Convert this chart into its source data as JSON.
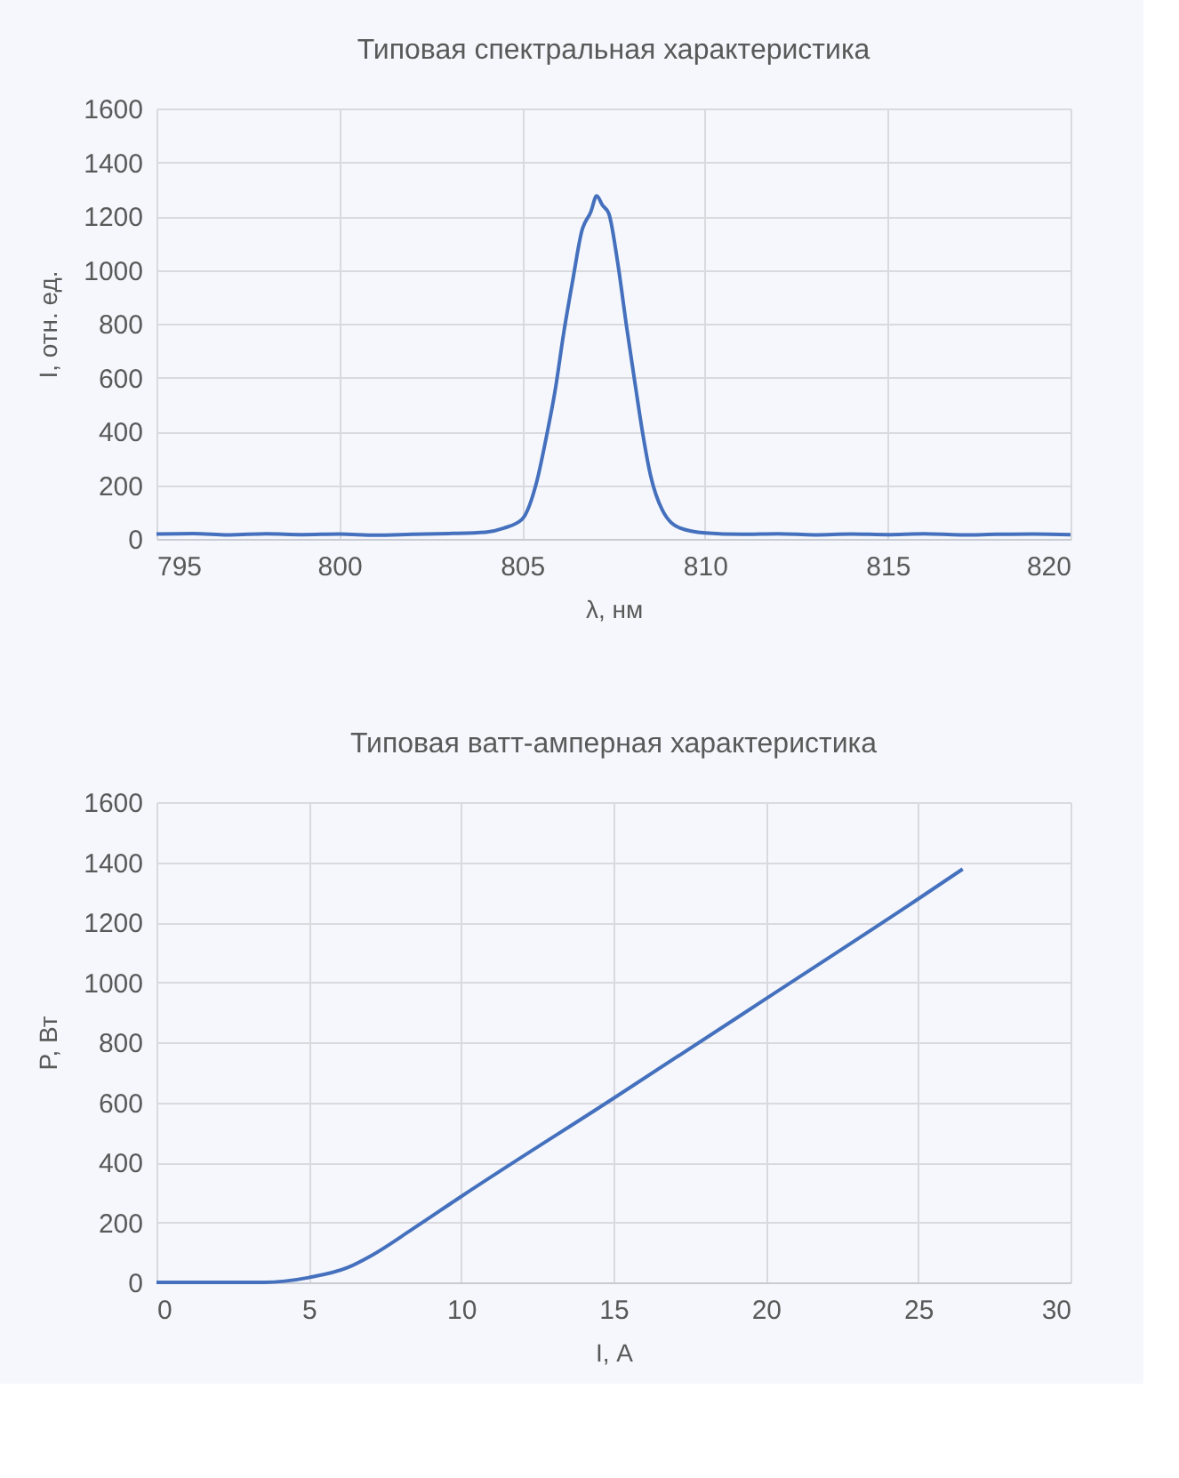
{
  "chart_data": [
    {
      "type": "line",
      "title": "Типовая спектральная характеристика",
      "xlabel": "λ, нм",
      "ylabel": "I, отн. ед.",
      "x": [
        795,
        796,
        797,
        798,
        799,
        800,
        801,
        802,
        803,
        804,
        804.5,
        805,
        805.41,
        805.65,
        805.9,
        806.14,
        806.39,
        806.63,
        806.88,
        807.04,
        807.2,
        807.37,
        807.61,
        807.86,
        808.1,
        808.27,
        808.51,
        808.84,
        809.33,
        810,
        811,
        812,
        813,
        814,
        815,
        816,
        817,
        818,
        819,
        820
      ],
      "series": [
        {
          "color": "#4470bd",
          "values": [
            18,
            20,
            15,
            19,
            16,
            18,
            14,
            17,
            20,
            25,
            40,
            73,
            218,
            370,
            549,
            767,
            965,
            1143,
            1216,
            1275,
            1240,
            1210,
            1031,
            787,
            568,
            416,
            238,
            106,
            40,
            22,
            17,
            19,
            15,
            18,
            16,
            19,
            15,
            17,
            18,
            16
          ]
        }
      ],
      "xlim": [
        795,
        820
      ],
      "xticks": [
        795,
        800,
        805,
        810,
        815,
        820
      ],
      "ylim": [
        0,
        1600
      ],
      "yticks": [
        0,
        200,
        400,
        600,
        800,
        1000,
        1200,
        1400,
        1600
      ],
      "grid": true,
      "line_style": "solid"
    },
    {
      "type": "line",
      "title": "Типовая ватт-амперная характеристика",
      "xlabel": "I, А",
      "ylabel": "P, Вт",
      "x": [
        0,
        2,
        3.54,
        5.0,
        6.27,
        7.05,
        8.41,
        10.0,
        14.98,
        19.99,
        24.95,
        26.46
      ],
      "series": [
        {
          "color": "#4470bd",
          "values": [
            0,
            0,
            0,
            16,
            49,
            89,
            178,
            286,
            612,
            944,
            1274,
            1377
          ]
        }
      ],
      "xlim": [
        0,
        30
      ],
      "xticks": [
        0,
        5,
        10,
        15,
        20,
        25,
        30
      ],
      "ylim": [
        0,
        1600
      ],
      "yticks": [
        0,
        200,
        400,
        600,
        800,
        1000,
        1200,
        1400,
        1600
      ],
      "grid": true,
      "line_style": "solid"
    }
  ]
}
